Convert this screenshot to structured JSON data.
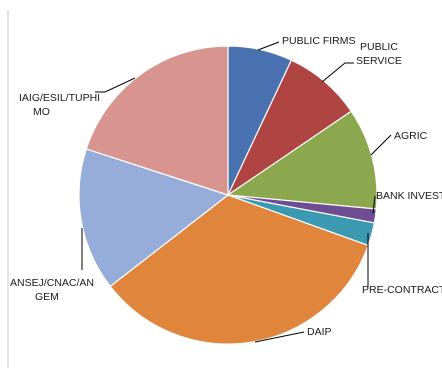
{
  "chart_data": {
    "type": "pie",
    "title": "",
    "start_angle_deg": 0,
    "direction": "clockwise",
    "legend": "none",
    "slices": [
      {
        "label": "PUBLIC FIRMS",
        "value": 7,
        "color": "#4a72b0"
      },
      {
        "label": "PUBLIC SERVICE",
        "value": 8.5,
        "color": "#b04442"
      },
      {
        "label": "AGRIC",
        "value": 11,
        "color": "#8ca84e"
      },
      {
        "label": "BANK INVEST",
        "value": 1.5,
        "color": "#6e4d92"
      },
      {
        "label": "PRE-CONTRACT",
        "value": 2.5,
        "color": "#3b99b1"
      },
      {
        "label": "DAIP",
        "value": 34,
        "color": "#e0853c"
      },
      {
        "label": "ANSEJ/CNAC/ANGEM",
        "value": 15.5,
        "color": "#95add8"
      },
      {
        "label": "IAIG/ESIL/TUPHIMO",
        "value": 20,
        "color": "#d89590"
      }
    ]
  }
}
